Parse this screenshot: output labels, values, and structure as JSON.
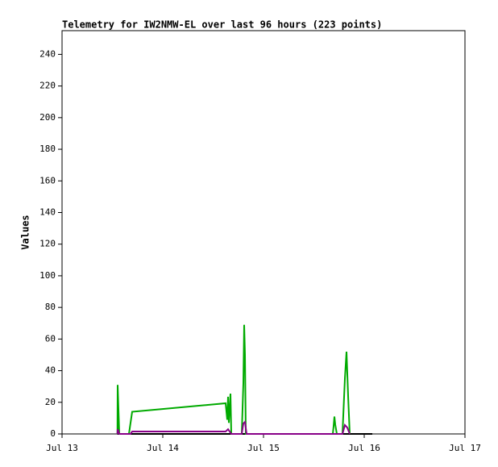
{
  "chart_data": {
    "type": "line",
    "title": "Telemetry for IW2NMW-EL over last 96 hours (223 points)",
    "y_label": "Values",
    "xlim": [
      0,
      4
    ],
    "xticks": [
      {
        "value": 0,
        "label": "Jul 13"
      },
      {
        "value": 1,
        "label": "Jul 14"
      },
      {
        "value": 2,
        "label": "Jul 15"
      },
      {
        "value": 3,
        "label": "Jul 16"
      },
      {
        "value": 4,
        "label": "Jul 17"
      }
    ],
    "ylim": [
      0,
      255
    ],
    "yticks": [
      0,
      20,
      40,
      60,
      80,
      100,
      120,
      140,
      160,
      180,
      200,
      220,
      240
    ],
    "series": [
      {
        "color": "#000000",
        "x": [
          0.55,
          3.08
        ],
        "values": [
          0,
          0
        ]
      },
      {
        "color": "#00aa00",
        "x": [
          0.55,
          0.552,
          0.568,
          0.664,
          0.696,
          1.624,
          1.64,
          1.648,
          1.656,
          1.672,
          1.68,
          1.784,
          1.8,
          1.808,
          1.816,
          1.824,
          2.688,
          2.696,
          2.704,
          2.712,
          2.728,
          2.784,
          2.808,
          2.824,
          2.84,
          2.856
        ],
        "values": [
          0,
          31,
          0,
          0,
          14,
          19.4,
          9,
          23.5,
          7,
          25.5,
          0,
          0,
          32,
          69,
          50,
          0,
          0,
          5,
          11,
          6,
          0,
          0,
          35,
          52,
          24,
          0
        ]
      },
      {
        "color": "#880088",
        "x": [
          0.55,
          0.552,
          0.568,
          0.68,
          0.696,
          1.624,
          1.648,
          1.68,
          1.784,
          1.8,
          1.816,
          1.832,
          2.784,
          2.808,
          2.832,
          2.856
        ],
        "values": [
          0,
          3,
          0,
          0,
          1.5,
          1.5,
          3,
          0,
          0,
          6.6,
          7.6,
          0,
          0,
          5.6,
          4,
          0
        ]
      }
    ]
  }
}
